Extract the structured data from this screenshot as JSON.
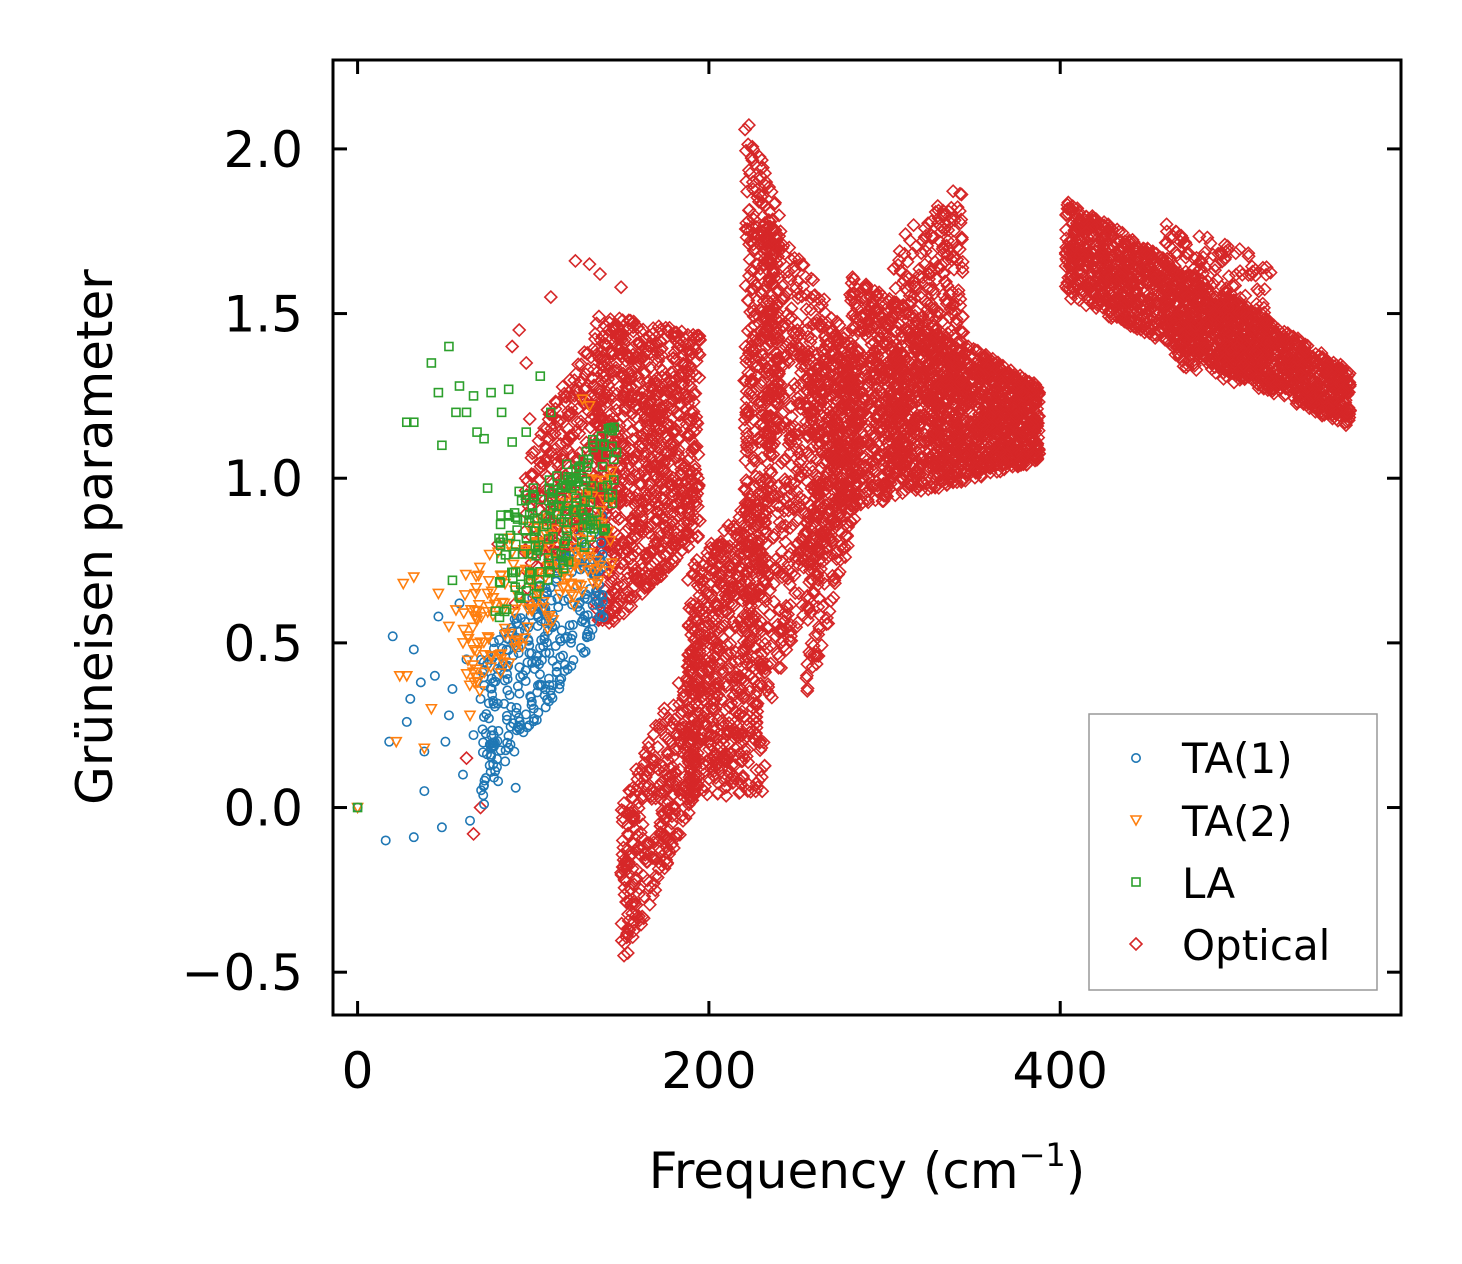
{
  "chart_data": {
    "type": "scatter",
    "title": "",
    "xlabel": "Frequency (cm",
    "xlabel_sup": "−1",
    "xlabel_end": ")",
    "ylabel": "Grüneisen parameter",
    "xlim": [
      -14,
      594
    ],
    "ylim": [
      -0.63,
      2.27
    ],
    "xticks": [
      0,
      200,
      400
    ],
    "xtick_labels": [
      "0",
      "200",
      "400"
    ],
    "yticks": [
      -0.5,
      0.0,
      0.5,
      1.0,
      1.5,
      2.0
    ],
    "ytick_labels": [
      "−0.5",
      "0.0",
      "0.5",
      "1.0",
      "1.5",
      "2.0"
    ],
    "grid": false,
    "legend_position": "bottom-right",
    "series": [
      {
        "name": "TA(1)",
        "color": "#1f77b4",
        "marker": "circle",
        "clusters": [
          {
            "kind": "scatter",
            "points": [
              [
                0,
                0.0
              ],
              [
                16,
                -0.1
              ],
              [
                32,
                -0.09
              ],
              [
                48,
                -0.06
              ],
              [
                64,
                -0.04
              ],
              [
                72,
                0.01
              ],
              [
                38,
                0.05
              ],
              [
                60,
                0.1
              ],
              [
                18,
                0.2
              ],
              [
                28,
                0.26
              ],
              [
                38,
                0.17
              ],
              [
                50,
                0.2
              ],
              [
                30,
                0.33
              ],
              [
                44,
                0.4
              ],
              [
                54,
                0.36
              ],
              [
                36,
                0.38
              ],
              [
                20,
                0.52
              ],
              [
                32,
                0.48
              ],
              [
                46,
                0.58
              ],
              [
                58,
                0.62
              ],
              [
                62,
                0.45
              ],
              [
                70,
                0.33
              ],
              [
                52,
                0.28
              ],
              [
                66,
                0.22
              ],
              [
                76,
                0.18
              ],
              [
                80,
                0.08
              ],
              [
                84,
                0.14
              ],
              [
                90,
                0.06
              ]
            ]
          },
          {
            "kind": "band",
            "x_range": [
              70,
              140
            ],
            "y_low": [
              0.02,
              0.55
            ],
            "y_high": [
              0.45,
              0.93
            ],
            "count": 320
          }
        ]
      },
      {
        "name": "TA(2)",
        "color": "#ff7f0e",
        "marker": "triangle-down",
        "clusters": [
          {
            "kind": "scatter",
            "points": [
              [
                0,
                0.0
              ],
              [
                22,
                0.2
              ],
              [
                24,
                0.4
              ],
              [
                28,
                0.4
              ],
              [
                26,
                0.68
              ],
              [
                32,
                0.7
              ],
              [
                38,
                0.18
              ],
              [
                42,
                0.3
              ],
              [
                46,
                0.65
              ],
              [
                52,
                0.55
              ],
              [
                56,
                0.6
              ],
              [
                60,
                0.5
              ],
              [
                64,
                0.28
              ],
              [
                68,
                0.42
              ],
              [
                74,
                0.65
              ],
              [
                128,
                1.24
              ],
              [
                132,
                1.22
              ]
            ]
          },
          {
            "kind": "band",
            "x_range": [
              60,
              145
            ],
            "y_low": [
              0.3,
              0.72
            ],
            "y_high": [
              0.72,
              1.05
            ],
            "count": 200
          }
        ]
      },
      {
        "name": "LA",
        "color": "#2ca02c",
        "marker": "square",
        "clusters": [
          {
            "kind": "scatter",
            "points": [
              [
                0,
                0.0
              ],
              [
                28,
                1.17
              ],
              [
                32,
                1.17
              ],
              [
                42,
                1.35
              ],
              [
                46,
                1.26
              ],
              [
                48,
                1.1
              ],
              [
                52,
                1.4
              ],
              [
                54,
                0.69
              ],
              [
                56,
                1.2
              ],
              [
                58,
                1.28
              ],
              [
                62,
                1.2
              ],
              [
                66,
                1.25
              ],
              [
                68,
                1.14
              ],
              [
                72,
                1.12
              ],
              [
                74,
                0.97
              ],
              [
                76,
                1.26
              ],
              [
                82,
                1.2
              ],
              [
                86,
                1.27
              ],
              [
                88,
                1.11
              ],
              [
                92,
                0.96
              ],
              [
                96,
                1.14
              ],
              [
                100,
                0.97
              ],
              [
                104,
                1.31
              ],
              [
                110,
                1.2
              ]
            ]
          },
          {
            "kind": "band",
            "x_range": [
              78,
              148
            ],
            "y_low": [
              0.52,
              0.88
            ],
            "y_high": [
              0.88,
              1.18
            ],
            "count": 180
          }
        ]
      },
      {
        "name": "Optical",
        "color": "#d62728",
        "marker": "diamond",
        "clusters": [
          {
            "kind": "scatter",
            "points": [
              [
                62,
                0.15
              ],
              [
                66,
                -0.08
              ],
              [
                70,
                0.0
              ],
              [
                80,
                0.8
              ],
              [
                88,
                1.4
              ],
              [
                92,
                1.45
              ],
              [
                96,
                1.35
              ],
              [
                110,
                1.55
              ],
              [
                124,
                1.66
              ],
              [
                132,
                1.65
              ],
              [
                138,
                1.62
              ],
              [
                150,
                1.58
              ],
              [
                112,
                0.87
              ],
              [
                98,
                1.18
              ],
              [
                90,
                0.62
              ]
            ]
          },
          {
            "kind": "band",
            "x_range": [
              95,
              140
            ],
            "y_low": [
              0.62,
              0.92
            ],
            "y_high": [
              1.1,
              1.48
            ],
            "count": 300
          },
          {
            "kind": "band",
            "x_range": [
              135,
              195
            ],
            "y_low": [
              0.5,
              0.82
            ],
            "y_high": [
              1.5,
              1.44
            ],
            "count": 900
          },
          {
            "kind": "band",
            "x_range": [
              150,
              195
            ],
            "y_low": [
              -0.5,
              0.06
            ],
            "y_high": [
              0.02,
              0.55
            ],
            "count": 350
          },
          {
            "kind": "band",
            "x_range": [
              188,
              232
            ],
            "y_low": [
              0.02,
              0.05
            ],
            "y_high": [
              0.72,
              1.0
            ],
            "count": 650
          },
          {
            "kind": "band",
            "x_range": [
              220,
              240
            ],
            "y_low": [
              0.3,
              1.2
            ],
            "y_high": [
              2.14,
              1.8
            ],
            "count": 400
          },
          {
            "kind": "band",
            "x_range": [
              232,
              280
            ],
            "y_low": [
              0.28,
              0.95
            ],
            "y_high": [
              1.85,
              1.42
            ],
            "count": 650
          },
          {
            "kind": "band",
            "x_range": [
              255,
              285
            ],
            "y_low": [
              0.3,
              0.9
            ],
            "y_high": [
              1.42,
              1.35
            ],
            "count": 300
          },
          {
            "kind": "band",
            "x_range": [
              280,
              388
            ],
            "y_low": [
              0.9,
              1.05
            ],
            "y_high": [
              1.62,
              1.28
            ],
            "count": 1700
          },
          {
            "kind": "band",
            "x_range": [
              305,
              345
            ],
            "y_low": [
              1.0,
              1.05
            ],
            "y_high": [
              1.72,
              1.9
            ],
            "count": 350
          },
          {
            "kind": "band",
            "x_range": [
              403,
              565
            ],
            "y_low": [
              1.55,
              1.15
            ],
            "y_high": [
              1.85,
              1.33
            ],
            "count": 1700
          },
          {
            "kind": "band",
            "x_range": [
              460,
              520
            ],
            "y_low": [
              1.35,
              1.25
            ],
            "y_high": [
              1.78,
              1.66
            ],
            "count": 300
          }
        ]
      }
    ]
  }
}
